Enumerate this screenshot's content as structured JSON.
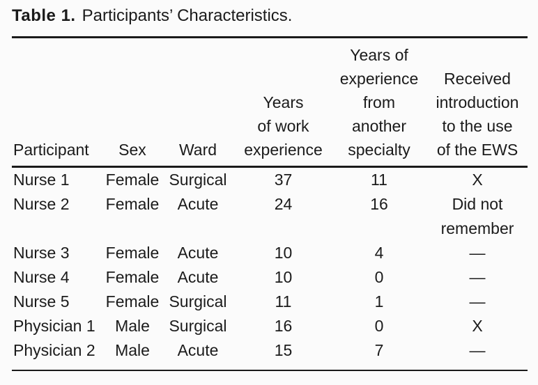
{
  "title": {
    "label": "Table 1.",
    "text": "Participants’ Characteristics."
  },
  "table": {
    "headers": [
      {
        "lines": [
          "Participant"
        ]
      },
      {
        "lines": [
          "Sex"
        ]
      },
      {
        "lines": [
          "Ward"
        ]
      },
      {
        "lines": [
          "Years",
          "of work",
          "experience"
        ]
      },
      {
        "lines": [
          "Years of",
          "experience",
          "from",
          "another",
          "specialty"
        ]
      },
      {
        "lines": [
          "Received",
          "introduction",
          "to the use",
          "of the EWS"
        ]
      }
    ],
    "rows": [
      {
        "participant": "Nurse 1",
        "sex": "Female",
        "ward": "Surgical",
        "years_work": "37",
        "years_other": "11",
        "ews": "X"
      },
      {
        "participant": "Nurse 2",
        "sex": "Female",
        "ward": "Acute",
        "years_work": "24",
        "years_other": "16",
        "ews": "Did not remember"
      },
      {
        "participant": "Nurse 3",
        "sex": "Female",
        "ward": "Acute",
        "years_work": "10",
        "years_other": "4",
        "ews": "—"
      },
      {
        "participant": "Nurse 4",
        "sex": "Female",
        "ward": "Acute",
        "years_work": "10",
        "years_other": "0",
        "ews": "—"
      },
      {
        "participant": "Nurse 5",
        "sex": "Female",
        "ward": "Surgical",
        "years_work": "11",
        "years_other": "1",
        "ews": "—"
      },
      {
        "participant": "Physician 1",
        "sex": "Male",
        "ward": "Surgical",
        "years_work": "16",
        "years_other": "0",
        "ews": "X"
      },
      {
        "participant": "Physician 2",
        "sex": "Male",
        "ward": "Acute",
        "years_work": "15",
        "years_other": "7",
        "ews": "—"
      }
    ]
  },
  "colors": {
    "text": "#1b1b1b",
    "rule": "#1b1b1b",
    "background": "#fbfbfb"
  }
}
